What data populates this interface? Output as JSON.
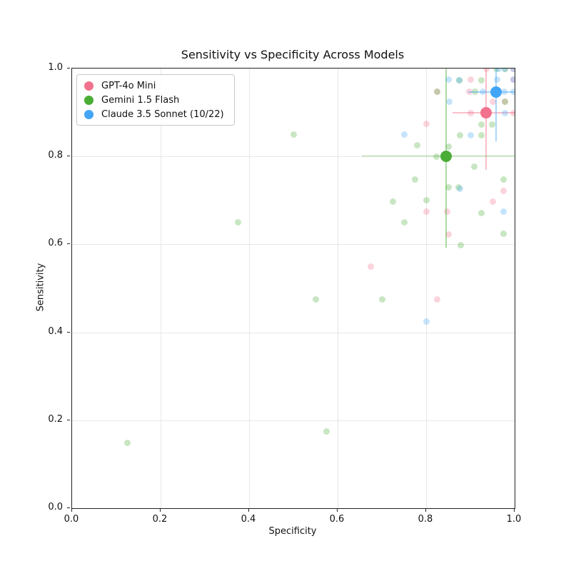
{
  "chart_data": {
    "type": "scatter",
    "title": "Sensitivity vs Specificity Across Models",
    "xlabel": "Specificity",
    "ylabel": "Sensitivity",
    "xlim": [
      0.0,
      1.0
    ],
    "ylim": [
      0.0,
      1.0
    ],
    "xtick_labels": [
      "0.0",
      "0.2",
      "0.4",
      "0.6",
      "0.8",
      "1.0"
    ],
    "ytick_labels": [
      "0.0",
      "0.2",
      "0.4",
      "0.6",
      "0.8",
      "1.0"
    ],
    "grid": true,
    "grid_color": "#e7e7e7",
    "spine_color": "#222222",
    "legend": {
      "position": "upper left",
      "entries": [
        {
          "label": "GPT-4o Mini",
          "color": "#f2718c"
        },
        {
          "label": "Gemini 1.5 Flash",
          "color": "#4aad35"
        },
        {
          "label": "Claude 3.5 Sonnet (10/22)",
          "color": "#42a5f5"
        }
      ]
    },
    "series": [
      {
        "name": "GPT-4o Mini",
        "color": "#f2718c",
        "point_alpha": 0.3,
        "mean": {
          "x": 0.935,
          "y": 0.899,
          "xerr_lo": 0.86,
          "xerr_hi": 1.0,
          "yerr_lo": 0.769,
          "yerr_hi": 1.0
        },
        "points": [
          [
            0.937,
            1.0
          ],
          [
            0.9,
            0.975
          ],
          [
            0.898,
            0.948
          ],
          [
            0.95,
            0.925
          ],
          [
            0.825,
            0.948
          ],
          [
            0.9,
            0.898
          ],
          [
            0.998,
            0.898
          ],
          [
            0.8,
            0.875
          ],
          [
            0.997,
            0.975
          ],
          [
            0.998,
            1.0
          ],
          [
            0.978,
            0.925
          ],
          [
            0.675,
            0.55
          ],
          [
            0.825,
            0.475
          ],
          [
            0.8,
            0.675
          ],
          [
            0.848,
            0.675
          ],
          [
            0.85,
            0.623
          ],
          [
            0.975,
            0.722
          ],
          [
            0.95,
            0.698
          ]
        ]
      },
      {
        "name": "Gemini 1.5 Flash",
        "color": "#4aad35",
        "point_alpha": 0.3,
        "mean": {
          "x": 0.845,
          "y": 0.801,
          "xerr_lo": 0.655,
          "xerr_hi": 1.0,
          "yerr_lo": 0.592,
          "yerr_hi": 1.0
        },
        "points": [
          [
            0.5,
            0.85
          ],
          [
            0.375,
            0.65
          ],
          [
            0.55,
            0.475
          ],
          [
            0.7,
            0.475
          ],
          [
            0.125,
            0.148
          ],
          [
            0.575,
            0.175
          ],
          [
            0.78,
            0.825
          ],
          [
            0.775,
            0.748
          ],
          [
            0.725,
            0.698
          ],
          [
            0.8,
            0.7
          ],
          [
            0.75,
            0.65
          ],
          [
            0.878,
            0.598
          ],
          [
            0.975,
            0.748
          ],
          [
            0.925,
            0.672
          ],
          [
            0.975,
            0.625
          ],
          [
            0.85,
            0.729
          ],
          [
            0.874,
            0.729
          ],
          [
            0.909,
            0.776
          ],
          [
            0.925,
            0.872
          ],
          [
            0.949,
            0.872
          ],
          [
            0.925,
            0.849
          ],
          [
            0.876,
            0.849
          ],
          [
            0.851,
            0.823
          ],
          [
            0.823,
            0.8
          ],
          [
            0.875,
            0.974
          ],
          [
            0.925,
            0.974
          ],
          [
            0.911,
            0.947
          ],
          [
            0.825,
            0.948
          ],
          [
            0.978,
            0.925
          ],
          [
            0.959,
            1.0
          ],
          [
            0.978,
            1.0
          ]
        ]
      },
      {
        "name": "Claude 3.5 Sonnet (10/22)",
        "color": "#42a5f5",
        "point_alpha": 0.3,
        "mean": {
          "x": 0.958,
          "y": 0.946,
          "xerr_lo": 0.895,
          "xerr_hi": 1.0,
          "yerr_lo": 0.835,
          "yerr_hi": 1.0
        },
        "points": [
          [
            0.75,
            0.85
          ],
          [
            0.8,
            0.425
          ],
          [
            0.9,
            0.849
          ],
          [
            0.975,
            0.675
          ],
          [
            0.85,
            0.975
          ],
          [
            0.875,
            0.974
          ],
          [
            0.852,
            0.925
          ],
          [
            0.96,
            0.975
          ],
          [
            0.929,
            0.947
          ],
          [
            0.976,
            0.948
          ],
          [
            0.998,
            0.948
          ],
          [
            0.978,
            0.898
          ],
          [
            0.963,
            1.0
          ],
          [
            0.978,
            1.0
          ],
          [
            0.997,
            0.975
          ],
          [
            0.876,
            0.727
          ],
          [
            0.998,
            1.0
          ]
        ]
      }
    ]
  }
}
